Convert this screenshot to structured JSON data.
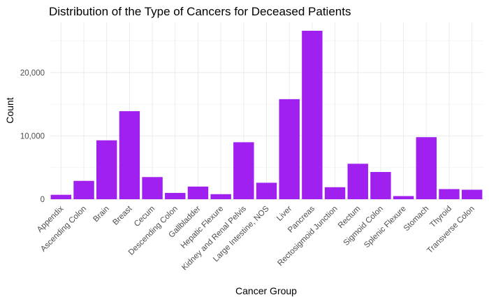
{
  "chart_data": {
    "type": "bar",
    "title": "Distribution of the Type of Cancers for Deceased Patients",
    "xlabel": "Cancer Group",
    "ylabel": "Count",
    "categories": [
      "Appendix",
      "Ascending Colon",
      "Brain",
      "Breast",
      "Cecum",
      "Descending Colon",
      "Gallbladder",
      "Hepatic Flexure",
      "Kidney and Renal Pelvis",
      "Large Intestine, NOS",
      "Liver",
      "Pancreas",
      "Rectosigmoid Junction",
      "Rectum",
      "Sigmoid Colon",
      "Splenic Flexure",
      "Stomach",
      "Thyroid",
      "Transverse Colon"
    ],
    "values": [
      700,
      2900,
      9300,
      13900,
      3500,
      1000,
      2000,
      800,
      9000,
      2600,
      15800,
      26600,
      1900,
      5600,
      4300,
      500,
      9800,
      1600,
      1500
    ],
    "ylim": [
      0,
      26600
    ],
    "yticks": [
      0,
      10000,
      20000
    ],
    "ytick_labels": [
      "0",
      "10,000",
      "20,000"
    ],
    "bar_color": "#a020f0",
    "grid": true,
    "legend": "none"
  }
}
